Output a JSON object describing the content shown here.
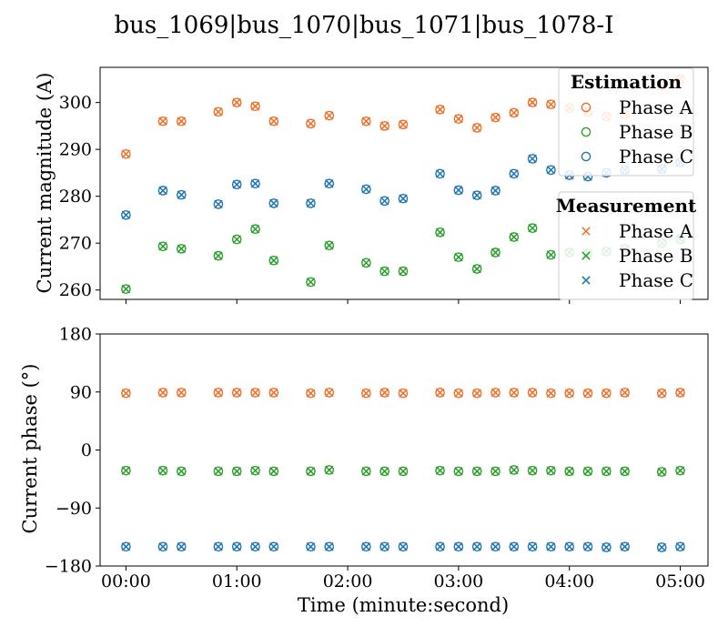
{
  "figure": {
    "title": "bus_1069|bus_1070|bus_1071|bus_1078-I"
  },
  "colors": {
    "Phase A": "#f0702a",
    "Phase B": "#2ca02c",
    "Phase C": "#1f77b4",
    "axis": "#000000",
    "legend_border": "#cccccc"
  },
  "chart_data": [
    {
      "type": "scatter",
      "panel": "top",
      "title": "",
      "xlabel": "",
      "ylabel": "Current magnitude (A)",
      "xlim": [
        -14,
        315
      ],
      "ylim": [
        258,
        307.5
      ],
      "yticks": [
        260,
        270,
        280,
        290,
        300
      ],
      "ytick_labels": [
        "260",
        "270",
        "280",
        "290",
        "300"
      ],
      "grid": false,
      "legends": [
        {
          "title": "Estimation",
          "marker": "circle",
          "entries": [
            "Phase A",
            "Phase B",
            "Phase C"
          ],
          "placement": "upper-right"
        },
        {
          "title": "Measurement",
          "marker": "x",
          "entries": [
            "Phase A",
            "Phase B",
            "Phase C"
          ],
          "placement": "right"
        }
      ],
      "x": [
        0,
        20,
        30,
        50,
        60,
        70,
        80,
        100,
        110,
        130,
        140,
        150,
        170,
        180,
        190,
        200,
        210,
        220,
        230,
        240,
        250,
        260,
        270,
        290,
        300
      ],
      "series": [
        {
          "name": "Phase A",
          "values": [
            289,
            296,
            296,
            298,
            300,
            299.2,
            296,
            295.5,
            297.2,
            296,
            295,
            295.3,
            298.5,
            296.5,
            294.6,
            296.8,
            297.8,
            300,
            299.6,
            298.8,
            298,
            297,
            297.5,
            303.5,
            305
          ]
        },
        {
          "name": "Phase B",
          "values": [
            260.2,
            269.3,
            268.8,
            267.3,
            270.8,
            273,
            266.3,
            261.7,
            269.5,
            265.8,
            264,
            264,
            272.3,
            267,
            264.5,
            268,
            271.3,
            273.2,
            267.5,
            268,
            267.8,
            268.2,
            268.8,
            270,
            270.8
          ]
        },
        {
          "name": "Phase C",
          "values": [
            276,
            281.2,
            280.3,
            278.3,
            282.5,
            282.7,
            278.5,
            278.5,
            282.7,
            281.5,
            279,
            279.5,
            284.8,
            281.3,
            280.2,
            281.2,
            284.8,
            288,
            285.6,
            284.5,
            284.2,
            285,
            285.6,
            285.8,
            287.2
          ]
        }
      ]
    },
    {
      "type": "scatter",
      "panel": "bottom",
      "title": "",
      "xlabel": "Time (minute:second)",
      "ylabel": "Current phase (°)",
      "xlim": [
        -14,
        315
      ],
      "ylim": [
        -180,
        180
      ],
      "yticks": [
        -180,
        -90,
        0,
        90,
        180
      ],
      "ytick_labels": [
        "−180",
        "−90",
        "0",
        "90",
        "180"
      ],
      "xticks": [
        0,
        60,
        120,
        180,
        240,
        300
      ],
      "xtick_labels": [
        "00:00",
        "01:00",
        "02:00",
        "03:00",
        "04:00",
        "05:00"
      ],
      "grid": false,
      "markers": [
        "circle",
        "x"
      ],
      "x": [
        0,
        20,
        30,
        50,
        60,
        70,
        80,
        100,
        110,
        130,
        140,
        150,
        170,
        180,
        190,
        200,
        210,
        220,
        230,
        240,
        250,
        260,
        270,
        290,
        300
      ],
      "series": [
        {
          "name": "Phase A",
          "values": [
            88,
            89,
            89,
            89,
            89,
            89,
            89,
            88,
            89,
            88,
            89,
            88,
            89,
            88,
            88,
            89,
            89,
            89,
            88,
            88,
            88,
            88,
            89,
            88,
            89
          ]
        },
        {
          "name": "Phase B",
          "values": [
            -32,
            -32,
            -33,
            -33,
            -33,
            -32,
            -33,
            -33,
            -31,
            -33,
            -33,
            -33,
            -32,
            -33,
            -33,
            -33,
            -31,
            -32,
            -32,
            -33,
            -33,
            -33,
            -33,
            -34,
            -32
          ]
        },
        {
          "name": "Phase C",
          "values": [
            -150,
            -150,
            -150,
            -150,
            -150,
            -150,
            -150,
            -150,
            -150,
            -150,
            -150,
            -150,
            -150,
            -150,
            -150,
            -150,
            -150,
            -150,
            -150,
            -150,
            -150,
            -151,
            -150,
            -151,
            -150
          ]
        }
      ]
    }
  ]
}
